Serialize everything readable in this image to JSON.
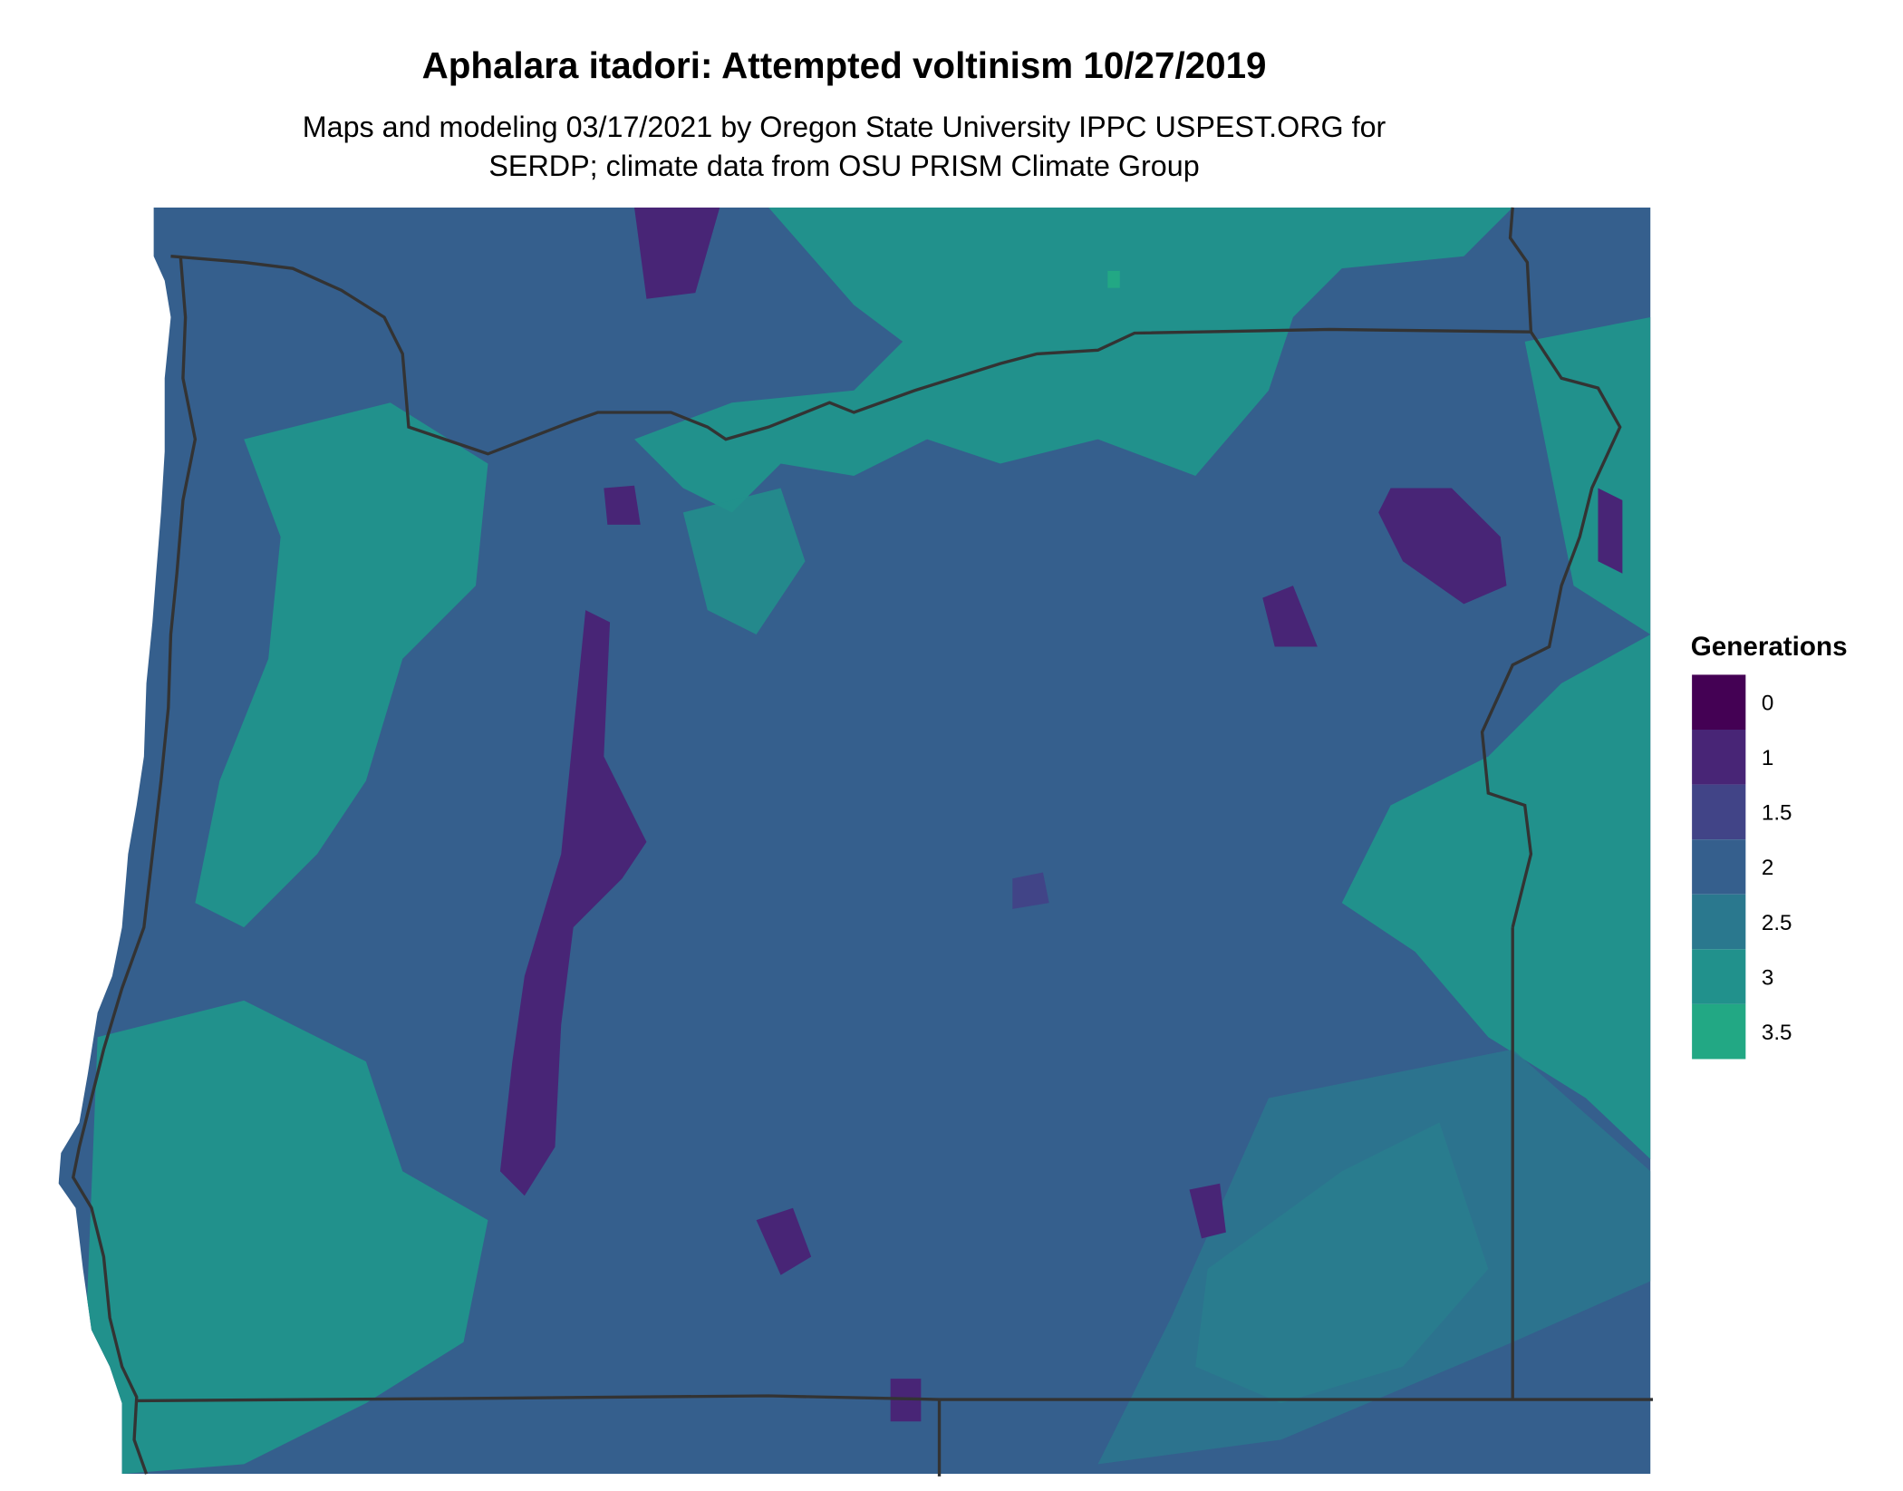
{
  "title": "Aphalara itadori: Attempted voltinism 10/27/2019",
  "subtitle_line1": "Maps and modeling 03/17/2021 by Oregon State University IPPC USPEST.ORG for",
  "subtitle_line2": "SERDP; climate data from OSU PRISM Climate Group",
  "chart_data": {
    "type": "heatmap",
    "title": "Aphalara itadori: Attempted voltinism 10/27/2019",
    "legend": {
      "title": "Generations",
      "placement": "right",
      "entries": [
        {
          "label": "0",
          "color": "#440154"
        },
        {
          "label": "1",
          "color": "#482576"
        },
        {
          "label": "1.5",
          "color": "#414487"
        },
        {
          "label": "2",
          "color": "#355f8d"
        },
        {
          "label": "2.5",
          "color": "#2a788e"
        },
        {
          "label": "3",
          "color": "#21918c"
        },
        {
          "label": "3.5",
          "color": "#22a884"
        }
      ]
    },
    "boundary_color": "#333333"
  }
}
